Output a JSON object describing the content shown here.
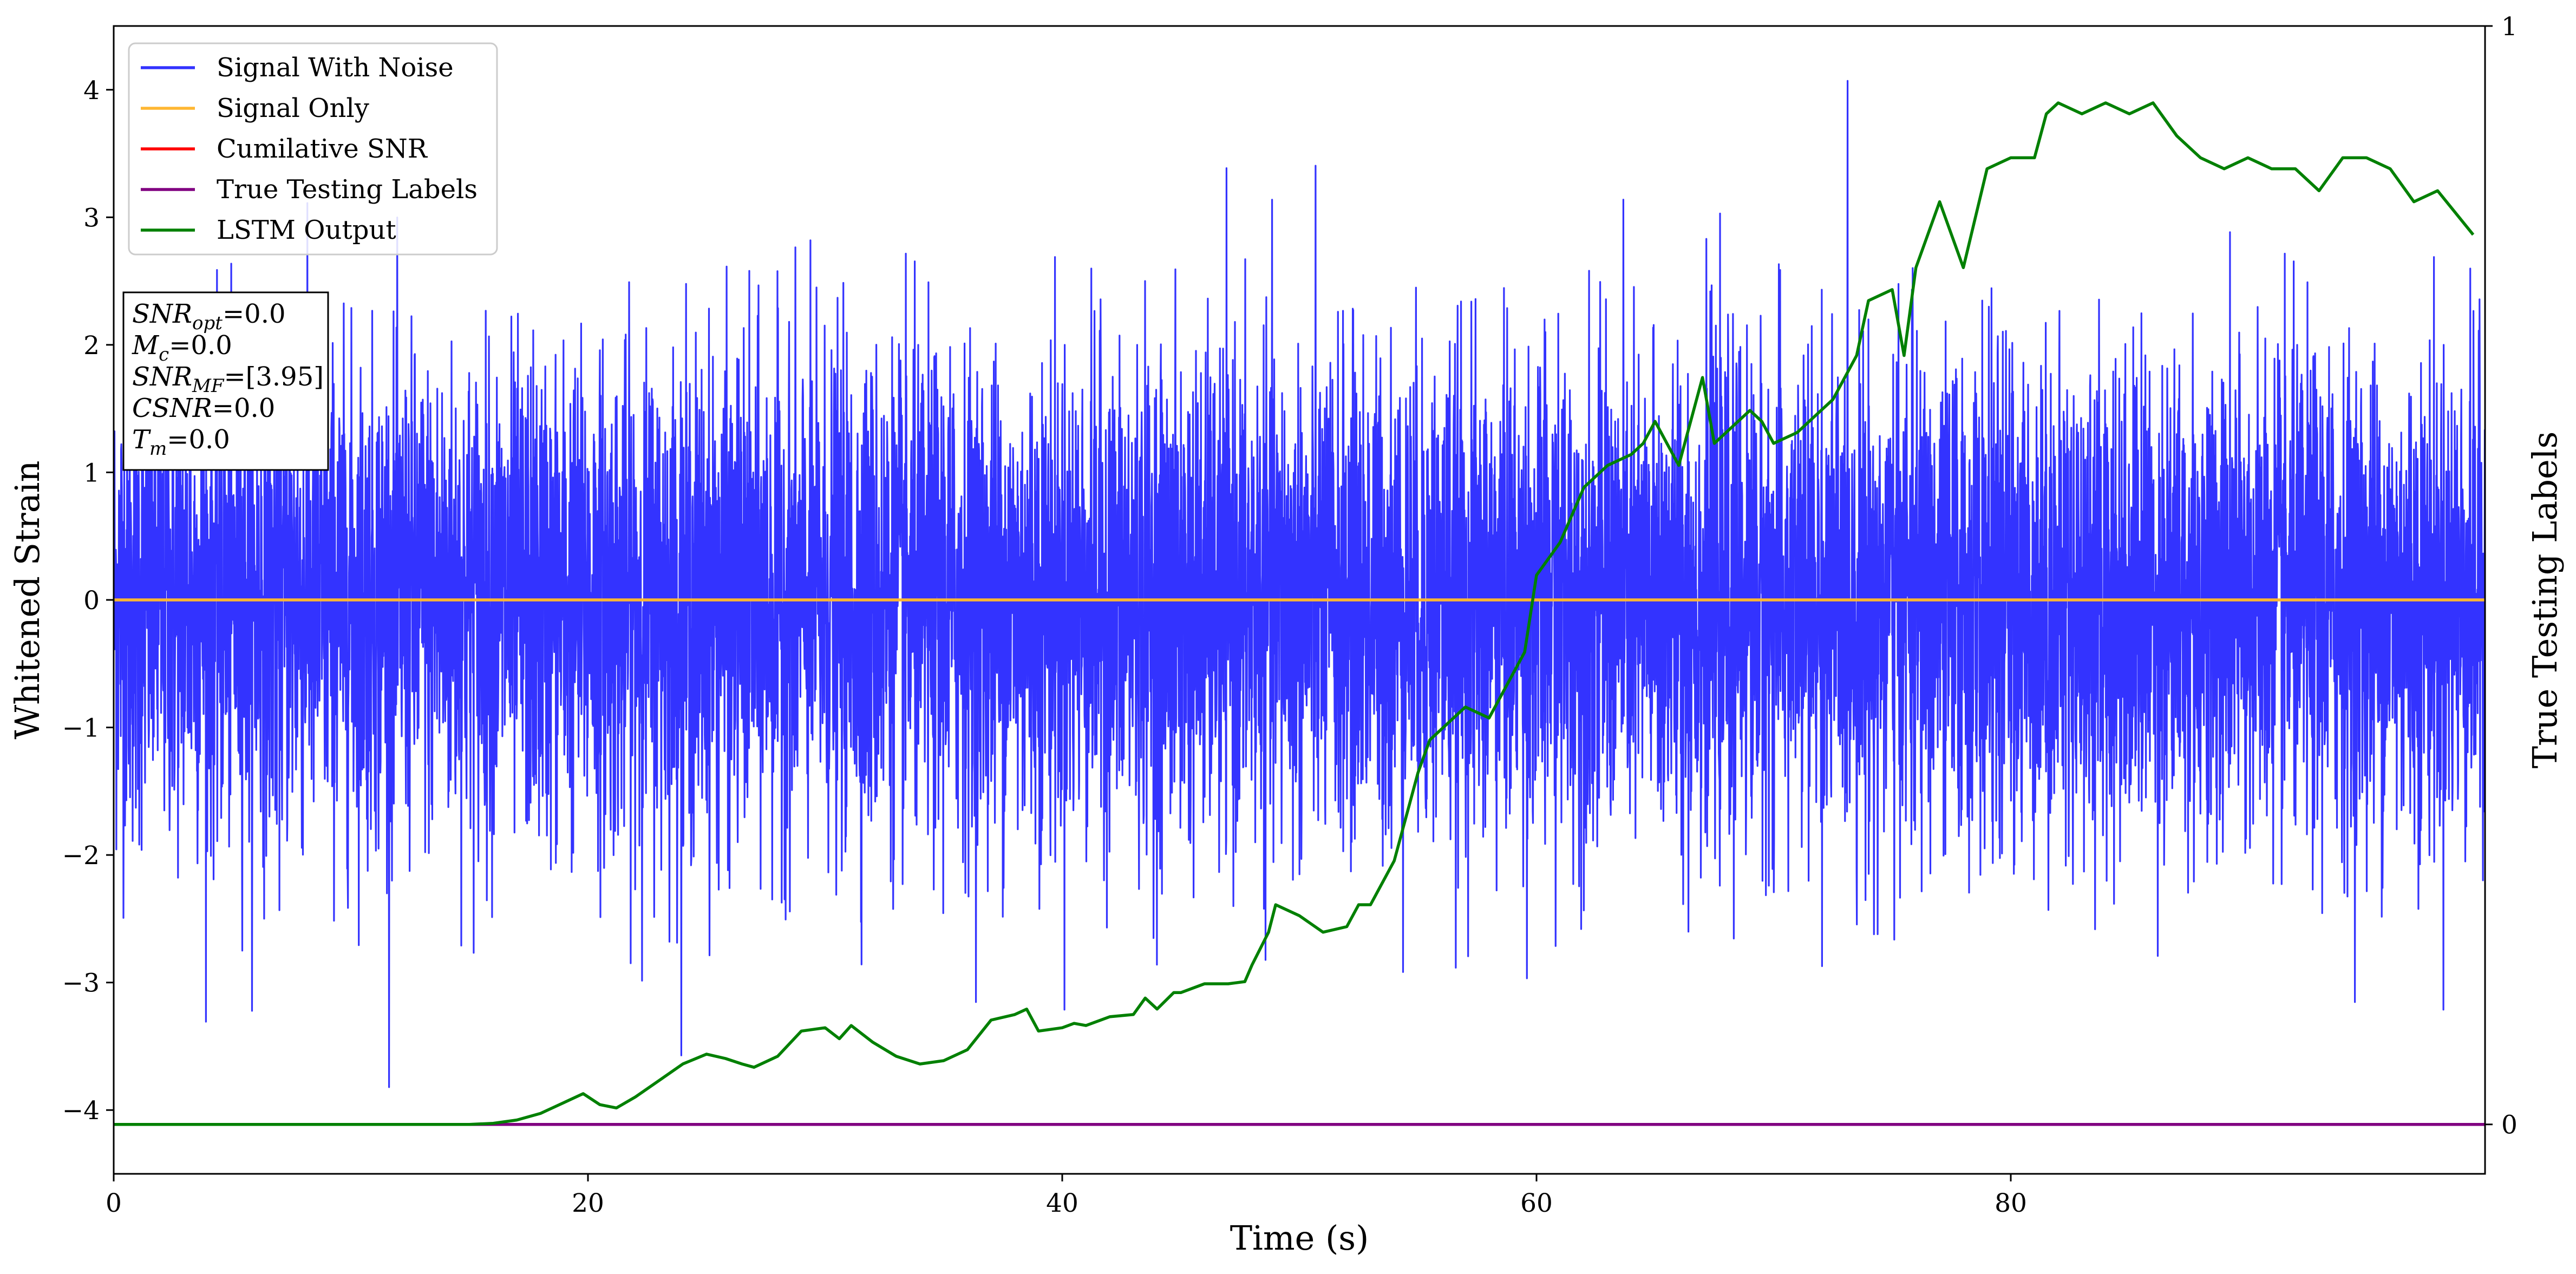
{
  "chart_data": {
    "type": "line",
    "xlabel": "Time (s)",
    "ylabel": "Whitened Strain",
    "y2label": "True Testing Labels",
    "xlim": [
      0,
      100
    ],
    "ylim": [
      -4.5,
      4.5
    ],
    "y2lim": [
      -0.045,
      1.0
    ],
    "x_ticks": [
      0,
      20,
      40,
      60,
      80
    ],
    "y_ticks": [
      -4,
      -3,
      -2,
      -1,
      0,
      1,
      2,
      3,
      4
    ],
    "y2_ticks": [
      0,
      1
    ],
    "grid": false,
    "legend_position": "top-left",
    "legend": [
      {
        "label": "Signal With Noise",
        "color": "#3333ff"
      },
      {
        "label": "Signal Only",
        "color": "#ffb733"
      },
      {
        "label": "Cumilative SNR",
        "color": "#ff0000"
      },
      {
        "label": "True Testing Labels",
        "color": "#800080"
      },
      {
        "label": "LSTM Output",
        "color": "#008000"
      }
    ],
    "annotation": {
      "lines": [
        {
          "sym": "SNR",
          "sub": "opt",
          "rest": "=0.0"
        },
        {
          "sym": "M",
          "sub": "c",
          "rest": "=0.0"
        },
        {
          "sym": "SNR",
          "sub": "MF",
          "rest": "=[3.95]"
        },
        {
          "sym": "CSNR",
          "sub": "",
          "rest": "=0.0"
        },
        {
          "sym": "T",
          "sub": "m",
          "rest": "=0.0"
        }
      ]
    },
    "series": [
      {
        "name": "Signal With Noise",
        "axis": "left",
        "color": "#3333ff",
        "description": "whitened Gaussian noise, std approximately 0.95",
        "noise_std": 0.95
      },
      {
        "name": "Signal Only",
        "axis": "left",
        "color": "#ffb733",
        "x": [
          0,
          100
        ],
        "y": [
          0,
          0
        ]
      },
      {
        "name": "True Testing Labels",
        "axis": "right",
        "color": "#800080",
        "x": [
          0,
          100
        ],
        "y": [
          0,
          0
        ]
      },
      {
        "name": "LSTM Output",
        "axis": "right",
        "color": "#008000",
        "x": [
          0,
          10,
          15,
          16,
          17,
          18,
          19,
          19.8,
          20.5,
          21.2,
          22,
          23,
          24,
          25,
          25.8,
          26.5,
          27,
          28,
          29,
          30,
          30.6,
          31.1,
          32,
          33,
          34,
          35,
          36,
          37,
          38,
          38.5,
          39,
          40,
          40.5,
          41,
          42,
          43,
          43.5,
          44,
          44.7,
          45,
          46,
          47,
          47.7,
          48,
          48.7,
          49,
          50,
          51,
          52,
          52.5,
          53,
          54,
          55,
          55.5,
          56,
          57,
          58,
          59,
          59.5,
          60,
          61,
          62,
          63,
          64,
          64.5,
          65,
          65.5,
          66,
          67,
          67.5,
          68,
          69,
          69.5,
          70,
          71,
          72,
          72.5,
          73,
          73.5,
          74,
          75,
          75.5,
          76,
          77,
          78,
          79,
          80,
          81,
          81.5,
          82,
          83,
          84,
          85,
          86,
          87,
          88,
          89,
          90,
          91,
          92,
          93,
          94,
          95,
          96,
          97,
          98,
          99.5
        ],
        "y": [
          0,
          0,
          0,
          0.001,
          0.004,
          0.01,
          0.02,
          0.028,
          0.018,
          0.015,
          0.025,
          0.04,
          0.055,
          0.064,
          0.06,
          0.055,
          0.052,
          0.062,
          0.085,
          0.088,
          0.078,
          0.09,
          0.075,
          0.062,
          0.055,
          0.058,
          0.068,
          0.095,
          0.1,
          0.105,
          0.085,
          0.088,
          0.092,
          0.09,
          0.098,
          0.1,
          0.115,
          0.105,
          0.12,
          0.12,
          0.128,
          0.128,
          0.13,
          0.145,
          0.175,
          0.2,
          0.19,
          0.175,
          0.18,
          0.2,
          0.2,
          0.24,
          0.32,
          0.35,
          0.36,
          0.38,
          0.37,
          0.41,
          0.43,
          0.5,
          0.53,
          0.58,
          0.6,
          0.61,
          0.62,
          0.64,
          0.62,
          0.6,
          0.68,
          0.62,
          0.63,
          0.65,
          0.64,
          0.62,
          0.63,
          0.65,
          0.66,
          0.68,
          0.7,
          0.75,
          0.76,
          0.7,
          0.78,
          0.84,
          0.78,
          0.87,
          0.88,
          0.88,
          0.92,
          0.93,
          0.92,
          0.93,
          0.92,
          0.93,
          0.9,
          0.88,
          0.87,
          0.88,
          0.87,
          0.87,
          0.85,
          0.88,
          0.88,
          0.87,
          0.84,
          0.85,
          0.81
        ]
      }
    ]
  }
}
